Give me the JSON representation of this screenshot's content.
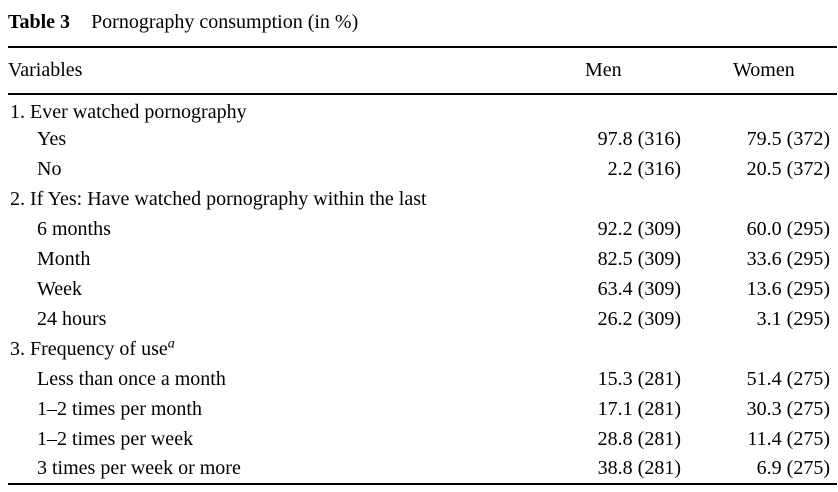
{
  "caption": {
    "label": "Table 3",
    "title": "Pornography consumption (in %)"
  },
  "table": {
    "columns": [
      "Variables",
      "Men",
      "Women"
    ],
    "rows": [
      {
        "type": "section",
        "label": "1. Ever watched pornography",
        "superscript": "",
        "men": "",
        "women": ""
      },
      {
        "type": "item",
        "label": "Yes",
        "superscript": "",
        "men": "97.8 (316)",
        "women": "79.5 (372)"
      },
      {
        "type": "item",
        "label": "No",
        "superscript": "",
        "men": "2.2 (316)",
        "women": "20.5 (372)"
      },
      {
        "type": "section",
        "label": "2. If Yes: Have watched pornography within the last",
        "superscript": "",
        "men": "",
        "women": ""
      },
      {
        "type": "item",
        "label": "6 months",
        "superscript": "",
        "men": "92.2 (309)",
        "women": "60.0 (295)"
      },
      {
        "type": "item",
        "label": "Month",
        "superscript": "",
        "men": "82.5 (309)",
        "women": "33.6 (295)"
      },
      {
        "type": "item",
        "label": "Week",
        "superscript": "",
        "men": "63.4 (309)",
        "women": "13.6 (295)"
      },
      {
        "type": "item",
        "label": "24 hours",
        "superscript": "",
        "men": "26.2 (309)",
        "women": "3.1 (295)"
      },
      {
        "type": "section",
        "label": "3. Frequency of use",
        "superscript": "a",
        "men": "",
        "women": ""
      },
      {
        "type": "item",
        "label": "Less than once a month",
        "superscript": "",
        "men": "15.3 (281)",
        "women": "51.4 (275)"
      },
      {
        "type": "item",
        "label": "1–2 times per month",
        "superscript": "",
        "men": "17.1 (281)",
        "women": "30.3 (275)"
      },
      {
        "type": "item",
        "label": "1–2 times per week",
        "superscript": "",
        "men": "28.8 (281)",
        "women": "11.4 (275)"
      },
      {
        "type": "item",
        "label": "3 times per week or more",
        "superscript": "",
        "men": "38.8 (281)",
        "women": "6.9 (275)"
      }
    ]
  },
  "colors": {
    "text": "#000000",
    "background": "#ffffff",
    "rule": "#000000"
  }
}
